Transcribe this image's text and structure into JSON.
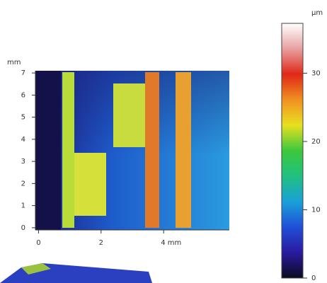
{
  "chart_data": {
    "type": "image",
    "y_label": "mm",
    "xlim": [
      -0.1,
      6.1
    ],
    "xticks": [
      0,
      2,
      {
        "value": 4,
        "label": "4 mm"
      }
    ],
    "ylim": [
      -0.1,
      7.1
    ],
    "yticks": [
      0,
      1,
      2,
      3,
      4,
      5,
      6,
      7
    ],
    "colorbar_label": "µm",
    "clim": [
      0,
      37.3
    ],
    "cticks": [
      0,
      10,
      20,
      30
    ],
    "colormap": [
      "#0b0b20",
      "#2a1aa0",
      "#1f4fd8",
      "#1aa0d8",
      "#20c080",
      "#3cc83c",
      "#e8e020",
      "#f09020",
      "#e02818",
      "#e8a0a0",
      "#ffffff"
    ]
  }
}
